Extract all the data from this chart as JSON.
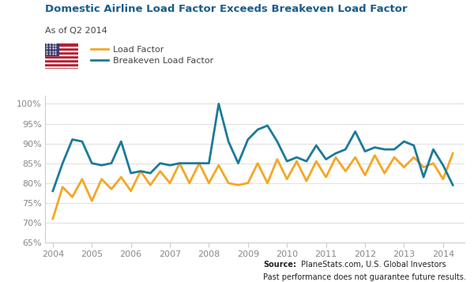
{
  "title": "Domestic Airline Load Factor Exceeds Breakeven Load Factor",
  "subtitle": "As of Q2 2014",
  "source_bold": "Source:",
  "source_text": " PlaneStats.com, U.S. Global Investors",
  "disclaimer": "Past performance does not guarantee future results.",
  "title_color": "#1a5c8a",
  "subtitle_color": "#444444",
  "bg_color": "#ffffff",
  "load_factor_color": "#f5a623",
  "breakeven_color": "#1a7a9a",
  "tick_color": "#888888",
  "grid_color": "#e0e0e0",
  "ylim": [
    65,
    102
  ],
  "yticks": [
    65,
    70,
    75,
    80,
    85,
    90,
    95,
    100
  ],
  "xlim_start": 2003.8,
  "xlim_end": 2014.55,
  "xticks": [
    2004,
    2005,
    2006,
    2007,
    2008,
    2009,
    2010,
    2011,
    2012,
    2013,
    2014
  ],
  "load_factor_label": "Load Factor",
  "breakeven_label": "Breakeven Load Factor",
  "lw": 2.0,
  "load_factor_x": [
    2004.0,
    2004.25,
    2004.5,
    2004.75,
    2005.0,
    2005.25,
    2005.5,
    2005.75,
    2006.0,
    2006.25,
    2006.5,
    2006.75,
    2007.0,
    2007.25,
    2007.5,
    2007.75,
    2008.0,
    2008.25,
    2008.5,
    2008.75,
    2009.0,
    2009.25,
    2009.5,
    2009.75,
    2010.0,
    2010.25,
    2010.5,
    2010.75,
    2011.0,
    2011.25,
    2011.5,
    2011.75,
    2012.0,
    2012.25,
    2012.5,
    2012.75,
    2013.0,
    2013.25,
    2013.5,
    2013.75,
    2014.0,
    2014.25
  ],
  "load_factor_y": [
    71.0,
    79.0,
    76.5,
    81.0,
    75.5,
    81.0,
    78.5,
    81.5,
    78.0,
    83.0,
    79.5,
    83.0,
    80.0,
    85.0,
    80.0,
    85.0,
    80.0,
    84.5,
    80.0,
    79.5,
    80.0,
    85.0,
    80.0,
    86.0,
    81.0,
    85.5,
    80.5,
    85.5,
    81.5,
    86.5,
    83.0,
    86.5,
    82.0,
    87.0,
    82.5,
    86.5,
    84.0,
    86.5,
    84.0,
    85.0,
    81.0,
    87.5
  ],
  "breakeven_x": [
    2004.0,
    2004.25,
    2004.5,
    2004.75,
    2005.0,
    2005.25,
    2005.5,
    2005.75,
    2006.0,
    2006.25,
    2006.5,
    2006.75,
    2007.0,
    2007.25,
    2007.5,
    2007.75,
    2008.0,
    2008.25,
    2008.5,
    2008.75,
    2009.0,
    2009.25,
    2009.5,
    2009.75,
    2010.0,
    2010.25,
    2010.5,
    2010.75,
    2011.0,
    2011.25,
    2011.5,
    2011.75,
    2012.0,
    2012.25,
    2012.5,
    2012.75,
    2013.0,
    2013.25,
    2013.5,
    2013.75,
    2014.0,
    2014.25
  ],
  "breakeven_y": [
    78.0,
    85.0,
    91.0,
    90.5,
    85.0,
    84.5,
    85.0,
    90.5,
    82.5,
    83.0,
    82.5,
    85.0,
    84.5,
    85.0,
    85.0,
    85.0,
    85.0,
    100.0,
    90.5,
    85.0,
    91.0,
    93.5,
    94.5,
    90.5,
    85.5,
    86.5,
    85.5,
    89.5,
    86.0,
    87.5,
    88.5,
    93.0,
    88.0,
    89.0,
    88.5,
    88.5,
    90.5,
    89.5,
    81.5,
    88.5,
    84.5,
    79.5
  ]
}
